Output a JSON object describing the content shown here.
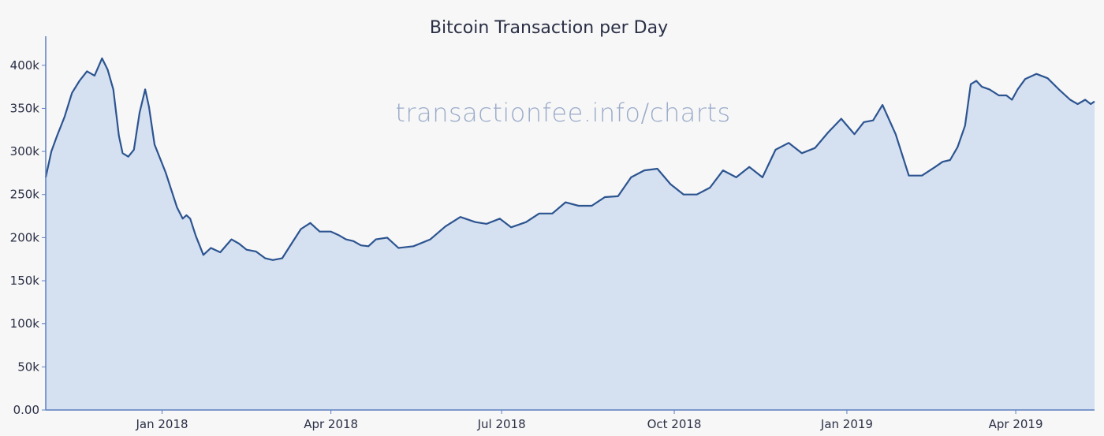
{
  "watermark": "transactionfee.info/charts",
  "chart_data": {
    "type": "area",
    "title": "Bitcoin Transaction per Day",
    "xlabel": "",
    "ylabel": "",
    "x_ticks": [
      {
        "label": "Jan 2018",
        "date": "2018-01-01"
      },
      {
        "label": "Apr 2018",
        "date": "2018-04-01"
      },
      {
        "label": "Jul 2018",
        "date": "2018-07-01"
      },
      {
        "label": "Oct 2018",
        "date": "2018-10-01"
      },
      {
        "label": "Jan 2019",
        "date": "2019-01-01"
      },
      {
        "label": "Apr 2019",
        "date": "2019-04-01"
      }
    ],
    "y_ticks": [
      {
        "label": "0.00",
        "value": 0
      },
      {
        "label": "50k",
        "value": 50000
      },
      {
        "label": "100k",
        "value": 100000
      },
      {
        "label": "150k",
        "value": 150000
      },
      {
        "label": "200k",
        "value": 200000
      },
      {
        "label": "250k",
        "value": 250000
      },
      {
        "label": "300k",
        "value": 300000
      },
      {
        "label": "350k",
        "value": 350000
      },
      {
        "label": "400k",
        "value": 400000
      }
    ],
    "xlim": [
      "2017-10-31",
      "2019-05-13"
    ],
    "ylim": [
      0,
      430000
    ],
    "grid": false,
    "colors": {
      "line": "#2c5490",
      "fill": "#d5e0f0",
      "axis": "#5b7fc0"
    },
    "series": [
      {
        "x": [
          "2017-10-31",
          "2017-11-03",
          "2017-11-06",
          "2017-11-10",
          "2017-11-14",
          "2017-11-18",
          "2017-11-22",
          "2017-11-26",
          "2017-11-30",
          "2017-12-03",
          "2017-12-06",
          "2017-12-09",
          "2017-12-11",
          "2017-12-14",
          "2017-12-17",
          "2017-12-20",
          "2017-12-23",
          "2017-12-25",
          "2017-12-28",
          "2018-01-03",
          "2018-01-06",
          "2018-01-09",
          "2018-01-12",
          "2018-01-14",
          "2018-01-16",
          "2018-01-19",
          "2018-01-23",
          "2018-01-27",
          "2018-02-01",
          "2018-02-07",
          "2018-02-11",
          "2018-02-15",
          "2018-02-20",
          "2018-02-25",
          "2018-03-01",
          "2018-03-06",
          "2018-03-11",
          "2018-03-16",
          "2018-03-21",
          "2018-03-26",
          "2018-04-01",
          "2018-04-05",
          "2018-04-09",
          "2018-04-13",
          "2018-04-17",
          "2018-04-21",
          "2018-04-25",
          "2018-05-01",
          "2018-05-07",
          "2018-05-15",
          "2018-05-24",
          "2018-06-01",
          "2018-06-09",
          "2018-06-17",
          "2018-06-23",
          "2018-06-30",
          "2018-07-06",
          "2018-07-14",
          "2018-07-21",
          "2018-07-28",
          "2018-08-04",
          "2018-08-11",
          "2018-08-18",
          "2018-08-25",
          "2018-09-01",
          "2018-09-08",
          "2018-09-15",
          "2018-09-22",
          "2018-09-29",
          "2018-10-06",
          "2018-10-13",
          "2018-10-20",
          "2018-10-27",
          "2018-11-03",
          "2018-11-10",
          "2018-11-17",
          "2018-11-24",
          "2018-12-01",
          "2018-12-08",
          "2018-12-15",
          "2018-12-22",
          "2018-12-29",
          "2019-01-05",
          "2019-01-10",
          "2019-01-15",
          "2019-01-20",
          "2019-01-27",
          "2019-02-03",
          "2019-02-10",
          "2019-02-17",
          "2019-02-21",
          "2019-02-25",
          "2019-03-01",
          "2019-03-05",
          "2019-03-08",
          "2019-03-11",
          "2019-03-14",
          "2019-03-18",
          "2019-03-23",
          "2019-03-27",
          "2019-03-30",
          "2019-04-02",
          "2019-04-06",
          "2019-04-12",
          "2019-04-18",
          "2019-04-24",
          "2019-04-30",
          "2019-05-04",
          "2019-05-08",
          "2019-05-11",
          "2019-05-13"
        ],
        "y": [
          270000,
          300000,
          318000,
          340000,
          368000,
          382000,
          393000,
          388000,
          408000,
          395000,
          372000,
          318000,
          298000,
          294000,
          302000,
          345000,
          372000,
          352000,
          308000,
          275000,
          255000,
          235000,
          222000,
          226000,
          222000,
          202000,
          180000,
          188000,
          183000,
          198000,
          193000,
          186000,
          184000,
          176000,
          174000,
          176000,
          193000,
          210000,
          217000,
          207000,
          207000,
          203000,
          198000,
          196000,
          191000,
          190000,
          198000,
          200000,
          188000,
          190000,
          198000,
          213000,
          224000,
          218000,
          216000,
          222000,
          212000,
          218000,
          228000,
          228000,
          241000,
          237000,
          237000,
          247000,
          248000,
          270000,
          278000,
          280000,
          262000,
          250000,
          250000,
          258000,
          278000,
          270000,
          282000,
          270000,
          302000,
          310000,
          298000,
          304000,
          322000,
          338000,
          320000,
          334000,
          336000,
          354000,
          320000,
          272000,
          272000,
          282000,
          288000,
          290000,
          305000,
          330000,
          378000,
          382000,
          375000,
          372000,
          365000,
          365000,
          360000,
          372000,
          384000,
          390000,
          385000,
          372000,
          360000,
          355000,
          360000,
          355000,
          358000
        ]
      }
    ]
  }
}
